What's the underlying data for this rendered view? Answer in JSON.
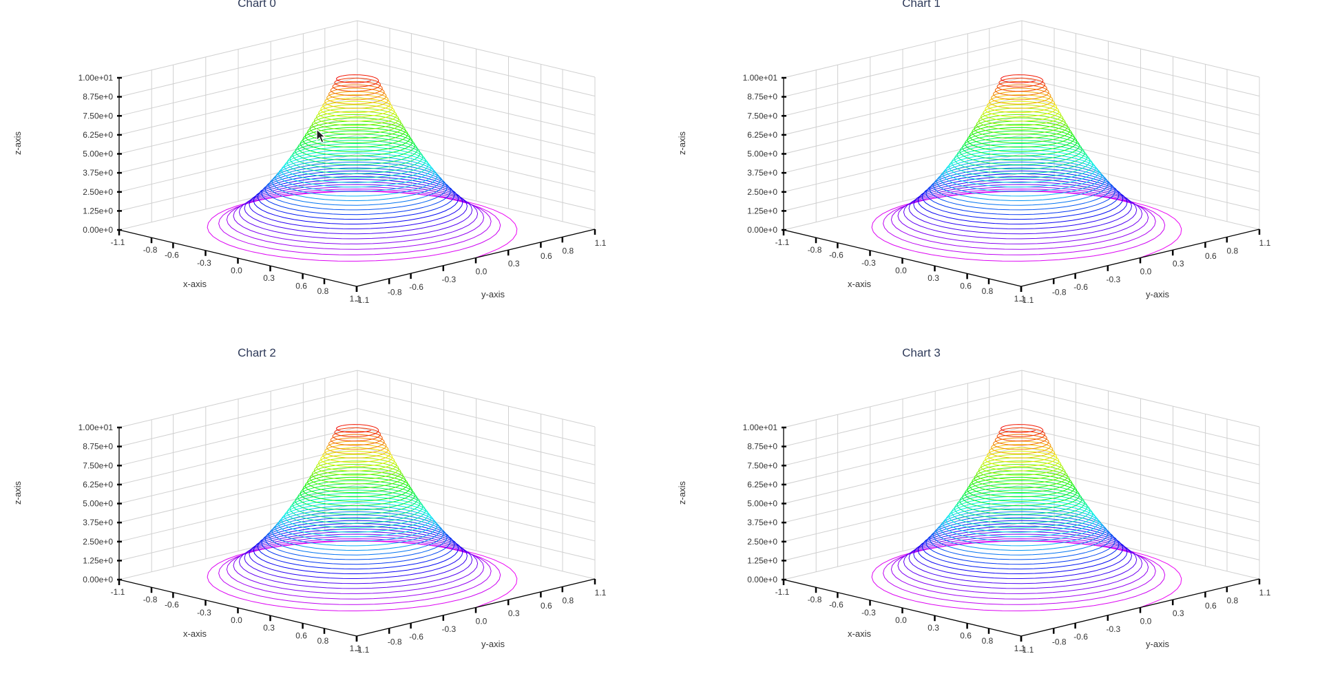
{
  "chart_data": [
    {
      "type": "scatter3d-helix",
      "title": "Chart 0",
      "xlabel": "x-axis",
      "ylabel": "y-axis",
      "zlabel": "z-axis",
      "xlim": [
        -1.1,
        1.1
      ],
      "ylim": [
        -1.1,
        1.1
      ],
      "zlim": [
        0,
        10
      ],
      "x_ticks": [
        "-1.1",
        "-0.8",
        "-0.6",
        "-0.3",
        "0.0",
        "0.3",
        "0.6",
        "0.8",
        "1.1"
      ],
      "y_ticks": [
        "-1.1",
        "-0.8",
        "-0.6",
        "-0.3",
        "0.0",
        "0.3",
        "0.6",
        "0.8",
        "1.1"
      ],
      "z_ticks": [
        "0.00e+0",
        "1.25e+0",
        "2.50e+0",
        "3.75e+0",
        "5.00e+0",
        "6.25e+0",
        "7.50e+0",
        "8.75e+0",
        "1.00e+01"
      ],
      "series": {
        "name": "helix",
        "turns": 40,
        "z_range": [
          0,
          10
        ],
        "radius_at_top": 0.13,
        "radius_at_bottom": 1.1,
        "colormap": "rainbow: magenta (z=0) to red (z=10)"
      }
    },
    {
      "type": "scatter3d-helix",
      "title": "Chart 1",
      "xlabel": "x-axis",
      "ylabel": "y-axis",
      "zlabel": "z-axis",
      "xlim": [
        -1.1,
        1.1
      ],
      "ylim": [
        -1.1,
        1.1
      ],
      "zlim": [
        0,
        10
      ],
      "x_ticks": [
        "-1.1",
        "-0.8",
        "-0.6",
        "-0.3",
        "0.0",
        "0.3",
        "0.6",
        "0.8",
        "1.1"
      ],
      "y_ticks": [
        "-1.1",
        "-0.8",
        "-0.6",
        "-0.3",
        "0.0",
        "0.3",
        "0.6",
        "0.8",
        "1.1"
      ],
      "z_ticks": [
        "0.00e+0",
        "1.25e+0",
        "2.50e+0",
        "3.75e+0",
        "5.00e+0",
        "6.25e+0",
        "7.50e+0",
        "8.75e+0",
        "1.00e+01"
      ],
      "series": {
        "name": "helix",
        "turns": 40,
        "z_range": [
          0,
          10
        ],
        "radius_at_top": 0.13,
        "radius_at_bottom": 1.1,
        "colormap": "rainbow: magenta (z=0) to red (z=10)"
      }
    },
    {
      "type": "scatter3d-helix",
      "title": "Chart 2",
      "xlabel": "x-axis",
      "ylabel": "y-axis",
      "zlabel": "z-axis",
      "xlim": [
        -1.1,
        1.1
      ],
      "ylim": [
        -1.1,
        1.1
      ],
      "zlim": [
        0,
        10
      ],
      "x_ticks": [
        "-1.1",
        "-0.8",
        "-0.6",
        "-0.3",
        "0.0",
        "0.3",
        "0.6",
        "0.8",
        "1.1"
      ],
      "y_ticks": [
        "-1.1",
        "-0.8",
        "-0.6",
        "-0.3",
        "0.0",
        "0.3",
        "0.6",
        "0.8",
        "1.1"
      ],
      "z_ticks": [
        "0.00e+0",
        "1.25e+0",
        "2.50e+0",
        "3.75e+0",
        "5.00e+0",
        "6.25e+0",
        "7.50e+0",
        "8.75e+0",
        "1.00e+01"
      ],
      "series": {
        "name": "helix",
        "turns": 40,
        "z_range": [
          0,
          10
        ],
        "radius_at_top": 0.13,
        "radius_at_bottom": 1.1,
        "colormap": "rainbow: magenta (z=0) to red (z=10)"
      }
    },
    {
      "type": "scatter3d-helix",
      "title": "Chart 3",
      "xlabel": "x-axis",
      "ylabel": "y-axis",
      "zlabel": "z-axis",
      "xlim": [
        -1.1,
        1.1
      ],
      "ylim": [
        -1.1,
        1.1
      ],
      "zlim": [
        0,
        10
      ],
      "x_ticks": [
        "-1.1",
        "-0.8",
        "-0.6",
        "-0.3",
        "0.0",
        "0.3",
        "0.6",
        "0.8",
        "1.1"
      ],
      "y_ticks": [
        "-1.1",
        "-0.8",
        "-0.6",
        "-0.3",
        "0.0",
        "0.3",
        "0.6",
        "0.8",
        "1.1"
      ],
      "z_ticks": [
        "0.00e+0",
        "1.25e+0",
        "2.50e+0",
        "3.75e+0",
        "5.00e+0",
        "6.25e+0",
        "7.50e+0",
        "8.75e+0",
        "1.00e+01"
      ],
      "series": {
        "name": "helix",
        "turns": 40,
        "z_range": [
          0,
          10
        ],
        "radius_at_top": 0.13,
        "radius_at_bottom": 1.1,
        "colormap": "rainbow: magenta (z=0) to red (z=10)"
      }
    }
  ],
  "colors": {
    "title": "#2e3a59",
    "axis": "#000000",
    "grid": "#d0d0d0",
    "text": "#333333"
  },
  "cursor": {
    "icon": "mouse-pointer-icon"
  }
}
